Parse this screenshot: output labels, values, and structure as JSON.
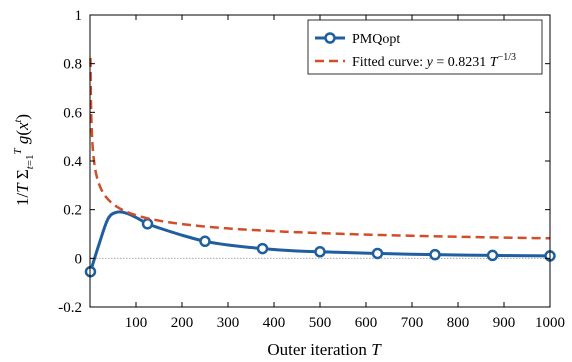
{
  "chart_data": {
    "type": "line",
    "xlabel": "Outer iteration T",
    "ylabel": "1/T Σ_{t=1}^{T} g(x^t)",
    "xlim": [
      0,
      1000
    ],
    "ylim": [
      -0.2,
      1.0
    ],
    "x_ticks": [
      "100",
      "200",
      "300",
      "400",
      "500",
      "600",
      "700",
      "800",
      "900",
      "1000"
    ],
    "y_ticks": [
      "-0.2",
      "0",
      "0.2",
      "0.4",
      "0.6",
      "0.8",
      "1"
    ],
    "grid": false,
    "legend_position": "top-right",
    "zero_reference_line": true,
    "series": [
      {
        "name": "PMQopt",
        "color": "#1f5fa0",
        "style": "solid",
        "marker": "open-circle",
        "x": [
          1,
          20,
          40,
          60,
          80,
          100,
          125,
          150,
          200,
          250,
          300,
          375,
          450,
          500,
          625,
          750,
          875,
          1000
        ],
        "y": [
          -0.055,
          0.06,
          0.165,
          0.19,
          0.185,
          0.168,
          0.142,
          0.125,
          0.095,
          0.07,
          0.055,
          0.04,
          0.03,
          0.027,
          0.02,
          0.015,
          0.012,
          0.01
        ],
        "marker_x": [
          1,
          125,
          250,
          375,
          500,
          625,
          750,
          875,
          1000
        ],
        "marker_y": [
          -0.055,
          0.142,
          0.07,
          0.04,
          0.027,
          0.02,
          0.015,
          0.012,
          0.01
        ]
      },
      {
        "name": "Fitted curve: y = 0.8231 T^{-1/3}",
        "color": "#d24e2b",
        "style": "dashed",
        "coefficient": 0.8231,
        "exponent": -0.3333333333,
        "x_start": 1,
        "x_end": 1000
      }
    ],
    "legend": {
      "pmq_label": "PMQopt",
      "fit_prefix": "Fitted curve: ",
      "fit_y": "y",
      "fit_eq": " = 0.8231 ",
      "fit_T": "T",
      "fit_exp": "−1/3"
    }
  }
}
